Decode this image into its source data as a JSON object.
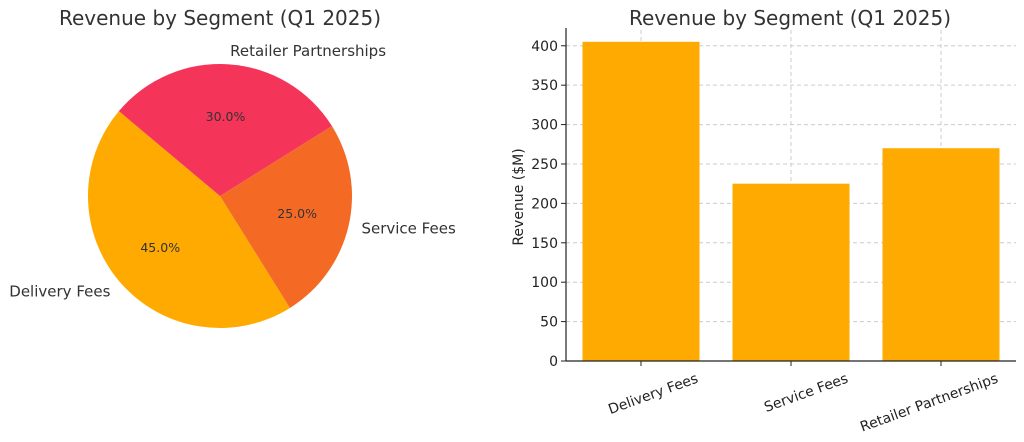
{
  "chart_data": [
    {
      "type": "pie",
      "title": "Revenue by Segment (Q1 2025)",
      "categories": [
        "Delivery Fees",
        "Service Fees",
        "Retailer Partnerships"
      ],
      "values": [
        45.0,
        25.0,
        30.0
      ],
      "labels": [
        "45.0%",
        "25.0%",
        "30.0%"
      ],
      "colors": [
        "#FFAA00",
        "#F46A25",
        "#F5345A"
      ]
    },
    {
      "type": "bar",
      "title": "Revenue by Segment (Q1 2025)",
      "categories": [
        "Delivery Fees",
        "Service Fees",
        "Retailer Partnerships"
      ],
      "values": [
        405,
        225,
        270
      ],
      "ylabel": "Revenue ($M)",
      "xlabel": "",
      "ylim": [
        0,
        420
      ],
      "yticks": [
        0,
        50,
        100,
        150,
        200,
        250,
        300,
        350,
        400
      ],
      "grid": true,
      "color": "#FFAA00"
    }
  ]
}
